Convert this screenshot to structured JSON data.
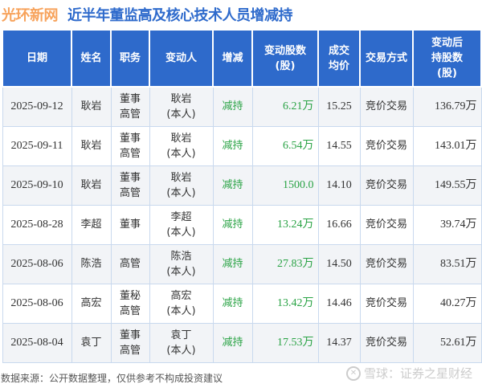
{
  "header": {
    "brand": "光环新网",
    "title": "近半年董监高及核心技术人员增减持"
  },
  "table": {
    "columns": [
      "日期",
      "姓名",
      "职务",
      "变动人",
      "增减",
      "变动股数\n(股)",
      "成交\n均价",
      "交易方式",
      "变动后\n持股数\n(股)"
    ],
    "rows": [
      {
        "date": "2025-09-12",
        "name": "耿岩",
        "role": "董事\n高管",
        "changer": "耿岩\n(本人)",
        "direction": "减持",
        "shares": "6.21万",
        "price": "15.25",
        "method": "竞价交易",
        "after": "136.79万"
      },
      {
        "date": "2025-09-11",
        "name": "耿岩",
        "role": "董事\n高管",
        "changer": "耿岩\n(本人)",
        "direction": "减持",
        "shares": "6.54万",
        "price": "14.55",
        "method": "竞价交易",
        "after": "143.01万"
      },
      {
        "date": "2025-09-10",
        "name": "耿岩",
        "role": "董事\n高管",
        "changer": "耿岩\n(本人)",
        "direction": "减持",
        "shares": "1500.0",
        "price": "14.10",
        "method": "竞价交易",
        "after": "149.55万"
      },
      {
        "date": "2025-08-28",
        "name": "李超",
        "role": "董事",
        "changer": "李超\n(本人)",
        "direction": "减持",
        "shares": "13.24万",
        "price": "16.66",
        "method": "竞价交易",
        "after": "39.74万"
      },
      {
        "date": "2025-08-06",
        "name": "陈浩",
        "role": "高管",
        "changer": "陈浩\n(本人)",
        "direction": "减持",
        "shares": "27.83万",
        "price": "14.50",
        "method": "竞价交易",
        "after": "83.51万"
      },
      {
        "date": "2025-08-06",
        "name": "高宏",
        "role": "董秘\n高管",
        "changer": "高宏\n(本人)",
        "direction": "减持",
        "shares": "13.42万",
        "price": "14.46",
        "method": "竞价交易",
        "after": "40.27万"
      },
      {
        "date": "2025-08-04",
        "name": "袁丁",
        "role": "董事\n高管",
        "changer": "袁丁\n(本人)",
        "direction": "减持",
        "shares": "17.53万",
        "price": "14.37",
        "method": "竞价交易",
        "after": "52.61万"
      }
    ]
  },
  "footer": {
    "source": "数据来源：公开数据整理，仅供参考不构成投资建议",
    "watermark": "雪球：证券之星财经"
  },
  "colors": {
    "header_bg": "#2e6acb",
    "brand": "#f7a35c",
    "title": "#2f6bcc",
    "decrease": "#2aa345"
  }
}
